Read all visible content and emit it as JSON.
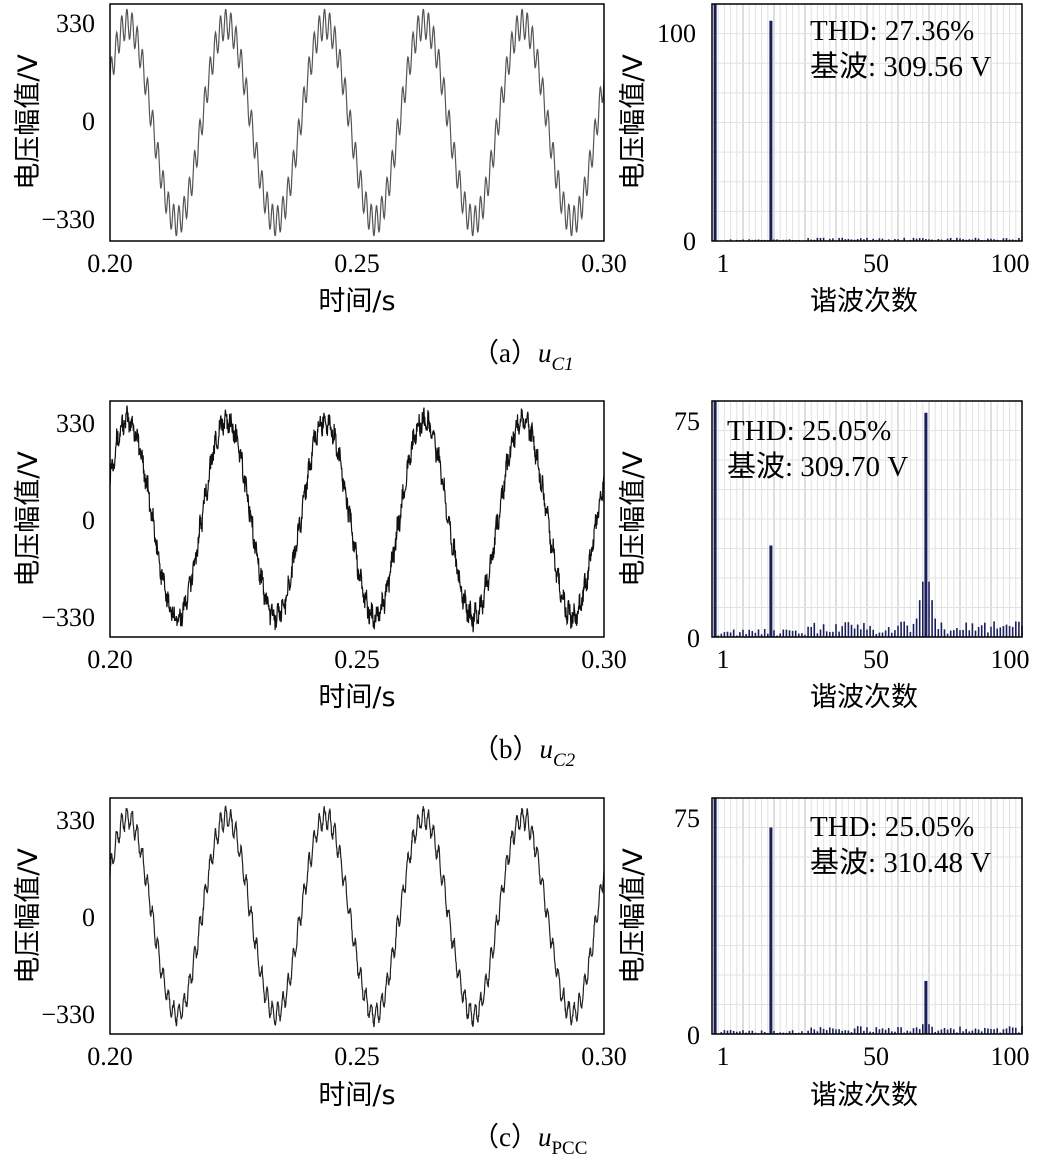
{
  "rows": [
    {
      "caption": {
        "prefix": "（a）",
        "sym": "u",
        "sub": "C1"
      },
      "wave": {
        "type": "line",
        "xlabel": "时间/s",
        "ylabel": "电压幅值/V",
        "xticks": [
          "0.20",
          "0.25",
          "0.30"
        ],
        "yticks": [
          "330",
          "0",
          "−330"
        ],
        "xlim": [
          0.2,
          0.3
        ],
        "ylim": [
          -360,
          360
        ],
        "fundamental_hz": 50,
        "amplitude": 300,
        "harmonic_order": 19,
        "harmonic_amplitude": 45,
        "noise_amplitude": 0,
        "color": "#555555"
      },
      "spectrum": {
        "type": "bar",
        "xlabel": "谐波次数",
        "ylabel": "电压幅值/V",
        "xticks": [
          "1",
          "50",
          "100"
        ],
        "yticks": [
          "100",
          "0"
        ],
        "xlim": [
          0,
          100
        ],
        "ylim": [
          0,
          113
        ],
        "peaks": [
          {
            "order": 1,
            "value": 309.56
          },
          {
            "order": 19,
            "value": 105
          }
        ],
        "noise_floor": 0.6,
        "bump": null,
        "thd": "THD: 27.36%",
        "fund": "基波: 309.56 V",
        "color": "#1a1f5c"
      }
    },
    {
      "caption": {
        "prefix": "（b）",
        "sym": "u",
        "sub": "C2"
      },
      "wave": {
        "type": "line",
        "xlabel": "时间/s",
        "ylabel": "电压幅值/V",
        "xticks": [
          "0.20",
          "0.25",
          "0.30"
        ],
        "yticks": [
          "330",
          "0",
          "−330"
        ],
        "xlim": [
          0.2,
          0.3
        ],
        "ylim": [
          -360,
          360
        ],
        "fundamental_hz": 50,
        "amplitude": 300,
        "harmonic_order": 19,
        "harmonic_amplitude": 20,
        "noise_amplitude": 28,
        "color": "#111111"
      },
      "spectrum": {
        "type": "bar",
        "xlabel": "谐波次数",
        "ylabel": "电压幅值/V",
        "xticks": [
          "1",
          "50",
          "100"
        ],
        "yticks": [
          "75",
          "0"
        ],
        "xlim": [
          0,
          100
        ],
        "ylim": [
          0,
          80
        ],
        "peaks": [
          {
            "order": 1,
            "value": 309.7
          },
          {
            "order": 19,
            "value": 31
          },
          {
            "order": 69,
            "value": 76
          }
        ],
        "noise_floor": 2.0,
        "bump": {
          "center": 69,
          "width": 3,
          "height": 25
        },
        "thd": "THD: 25.05%",
        "fund": "基波: 309.70 V",
        "color": "#1a1f5c"
      }
    },
    {
      "caption": {
        "prefix": "（c）",
        "sym": "u",
        "sub": "PCC"
      },
      "wave": {
        "type": "line",
        "xlabel": "时间/s",
        "ylabel": "电压幅值/V",
        "xticks": [
          "0.20",
          "0.25",
          "0.30"
        ],
        "yticks": [
          "330",
          "0",
          "−330"
        ],
        "xlim": [
          0.2,
          0.3
        ],
        "ylim": [
          -360,
          360
        ],
        "fundamental_hz": 50,
        "amplitude": 300,
        "harmonic_order": 19,
        "harmonic_amplitude": 30,
        "noise_amplitude": 10,
        "color": "#222222"
      },
      "spectrum": {
        "type": "bar",
        "xlabel": "谐波次数",
        "ylabel": "电压幅值/V",
        "xticks": [
          "1",
          "50",
          "100"
        ],
        "yticks": [
          "75",
          "0"
        ],
        "xlim": [
          0,
          100
        ],
        "ylim": [
          0,
          80
        ],
        "peaks": [
          {
            "order": 1,
            "value": 310.48
          },
          {
            "order": 19,
            "value": 70
          },
          {
            "order": 69,
            "value": 18
          }
        ],
        "noise_floor": 1.0,
        "bump": {
          "center": 69,
          "width": 2,
          "height": 5
        },
        "thd": "THD: 25.05%",
        "fund": "基波: 310.48 V",
        "color": "#1a1f5c"
      }
    }
  ]
}
